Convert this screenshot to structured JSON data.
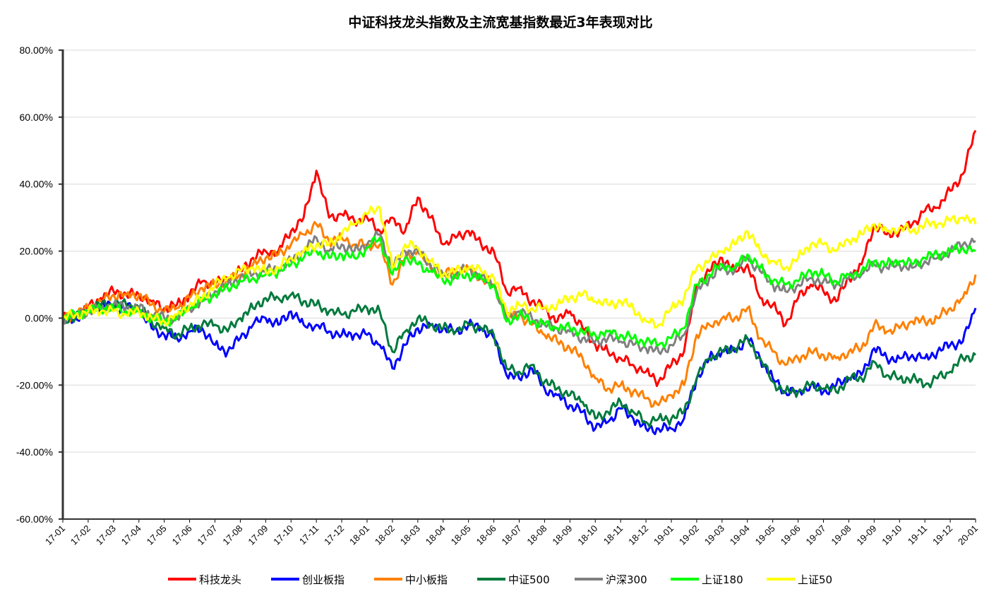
{
  "chart_data": {
    "type": "line",
    "title": "中证科技龙头指数及主流宽基指数最近3年表现对比",
    "xlabel": "",
    "ylabel": "",
    "ylim": [
      -60,
      80
    ],
    "y_ticks": [
      80,
      60,
      40,
      20,
      0,
      -20,
      -40,
      -60
    ],
    "y_tick_labels": [
      "80.00%",
      "60.00%",
      "40.00%",
      "20.00%",
      "0.00%",
      "-20.00%",
      "-40.00%",
      "-60.00%"
    ],
    "y_unit": "%",
    "grid": "horizontal",
    "legend_position": "bottom",
    "x_tick_labels": [
      "17-01",
      "17-02",
      "17-03",
      "17-04",
      "17-05",
      "17-06",
      "17-07",
      "17-08",
      "17-09",
      "17-10",
      "17-11",
      "17-12",
      "18-01",
      "18-02",
      "18-03",
      "18-04",
      "18-05",
      "18-06",
      "18-07",
      "18-08",
      "18-09",
      "18-10",
      "18-11",
      "18-12",
      "19-01",
      "19-02",
      "19-03",
      "19-04",
      "19-05",
      "19-06",
      "19-07",
      "19-08",
      "19-09",
      "19-10",
      "19-11",
      "19-12",
      "20-01"
    ],
    "x": [
      "17-01",
      "17-01h",
      "17-02",
      "17-02h",
      "17-03",
      "17-03h",
      "17-04",
      "17-04h",
      "17-05",
      "17-05h",
      "17-06",
      "17-06h",
      "17-07",
      "17-07h",
      "17-08",
      "17-08h",
      "17-09",
      "17-09h",
      "17-10",
      "17-10h",
      "17-11",
      "17-11h",
      "17-12",
      "17-12h",
      "18-01",
      "18-01h",
      "18-02",
      "18-02h",
      "18-03",
      "18-03h",
      "18-04",
      "18-04h",
      "18-05",
      "18-05h",
      "18-06",
      "18-06h",
      "18-07",
      "18-07h",
      "18-08",
      "18-08h",
      "18-09",
      "18-09h",
      "18-10",
      "18-10h",
      "18-11",
      "18-11h",
      "18-12",
      "18-12h",
      "19-01",
      "19-01h",
      "19-02",
      "19-02h",
      "19-03",
      "19-03h",
      "19-04",
      "19-04h",
      "19-05",
      "19-05h",
      "19-06",
      "19-06h",
      "19-07",
      "19-07h",
      "19-08",
      "19-08h",
      "19-09",
      "19-09h",
      "19-10",
      "19-10h",
      "19-11",
      "19-11h",
      "19-12",
      "19-12h",
      "20-01"
    ],
    "series": [
      {
        "name": "科技龙头",
        "color": "#ff0000",
        "values": [
          0,
          1,
          3,
          6,
          8,
          7,
          7,
          5,
          3,
          4,
          7,
          11,
          10,
          12,
          14,
          18,
          20,
          20,
          26,
          30,
          44,
          30,
          31,
          29,
          30,
          26,
          30,
          26,
          36,
          30,
          22,
          24,
          26,
          22,
          20,
          8,
          9,
          5,
          3,
          -1,
          2,
          -3,
          -8,
          -10,
          -12,
          -14,
          -16,
          -19,
          -14,
          -10,
          10,
          14,
          18,
          14,
          16,
          6,
          4,
          -2,
          6,
          10,
          8,
          5,
          12,
          16,
          28,
          25,
          26,
          28,
          32,
          33,
          38,
          43,
          56
        ]
      },
      {
        "name": "创业板指",
        "color": "#0000ff",
        "values": [
          0,
          0,
          2,
          4,
          3,
          3,
          3,
          -3,
          -5,
          -6,
          -4,
          -3,
          -8,
          -10,
          -6,
          -2,
          0,
          -2,
          2,
          -2,
          -2,
          -4,
          -5,
          -5,
          -5,
          -8,
          -15,
          -8,
          -3,
          -2,
          -3,
          -4,
          -2,
          -3,
          -6,
          -17,
          -18,
          -15,
          -21,
          -23,
          -26,
          -28,
          -33,
          -31,
          -27,
          -30,
          -33,
          -33,
          -33,
          -30,
          -18,
          -12,
          -10,
          -10,
          -6,
          -12,
          -18,
          -22,
          -22,
          -20,
          -22,
          -20,
          -18,
          -17,
          -9,
          -12,
          -12,
          -11,
          -12,
          -10,
          -8,
          -7,
          3
        ]
      },
      {
        "name": "中小板指",
        "color": "#ff8000",
        "values": [
          0,
          1,
          3,
          5,
          7,
          7,
          7,
          4,
          2,
          3,
          6,
          9,
          10,
          11,
          13,
          16,
          18,
          19,
          22,
          25,
          28,
          23,
          24,
          22,
          22,
          22,
          10,
          18,
          20,
          15,
          13,
          14,
          15,
          12,
          10,
          0,
          1,
          -2,
          -5,
          -7,
          -9,
          -12,
          -18,
          -21,
          -20,
          -22,
          -24,
          -26,
          -23,
          -20,
          -5,
          -2,
          0,
          0,
          3,
          -6,
          -10,
          -14,
          -12,
          -10,
          -11,
          -12,
          -10,
          -9,
          -2,
          -4,
          -3,
          -1,
          -1,
          0,
          3,
          6,
          13
        ]
      },
      {
        "name": "中证500",
        "color": "#007a3d",
        "values": [
          0,
          0,
          2,
          4,
          4,
          4,
          3,
          -1,
          -3,
          -5,
          -3,
          -2,
          -2,
          -4,
          0,
          3,
          6,
          6,
          7,
          5,
          4,
          2,
          1,
          2,
          3,
          2,
          -10,
          -4,
          0,
          -2,
          -3,
          -4,
          -2,
          -3,
          -5,
          -15,
          -16,
          -14,
          -19,
          -21,
          -23,
          -25,
          -30,
          -28,
          -25,
          -28,
          -31,
          -30,
          -30,
          -28,
          -18,
          -12,
          -10,
          -9,
          -6,
          -12,
          -19,
          -22,
          -22,
          -20,
          -21,
          -22,
          -18,
          -18,
          -13,
          -17,
          -18,
          -18,
          -20,
          -18,
          -16,
          -12,
          -11
        ]
      },
      {
        "name": "沪深300",
        "color": "#808080",
        "values": [
          0,
          1,
          2,
          3,
          4,
          3,
          3,
          1,
          0,
          0,
          3,
          5,
          8,
          10,
          12,
          13,
          14,
          15,
          17,
          20,
          24,
          20,
          22,
          20,
          22,
          25,
          15,
          20,
          20,
          16,
          13,
          13,
          15,
          12,
          10,
          0,
          2,
          0,
          -2,
          -3,
          -4,
          -6,
          -7,
          -6,
          -7,
          -8,
          -9,
          -10,
          -8,
          -5,
          8,
          12,
          15,
          14,
          18,
          14,
          10,
          8,
          10,
          12,
          11,
          10,
          12,
          13,
          16,
          15,
          16,
          15,
          17,
          18,
          20,
          22,
          23
        ]
      },
      {
        "name": "上证180",
        "color": "#00ff00",
        "values": [
          0,
          1,
          2,
          3,
          3,
          2,
          2,
          0,
          -1,
          0,
          3,
          5,
          7,
          9,
          11,
          12,
          13,
          14,
          16,
          18,
          20,
          18,
          19,
          18,
          21,
          24,
          13,
          18,
          16,
          14,
          11,
          12,
          13,
          12,
          10,
          -1,
          1,
          -1,
          -2,
          -3,
          -3,
          -4,
          -5,
          -4,
          -5,
          -6,
          -7,
          -8,
          -6,
          -3,
          10,
          13,
          16,
          15,
          19,
          15,
          11,
          10,
          11,
          14,
          13,
          11,
          13,
          14,
          17,
          16,
          17,
          16,
          18,
          19,
          20,
          21,
          20
        ]
      },
      {
        "name": "上证50",
        "color": "#ffff00",
        "values": [
          0,
          1,
          2,
          2,
          2,
          1,
          2,
          0,
          -1,
          1,
          4,
          6,
          10,
          12,
          14,
          15,
          14,
          15,
          18,
          20,
          22,
          22,
          25,
          28,
          31,
          33,
          15,
          22,
          21,
          17,
          13,
          14,
          15,
          14,
          12,
          2,
          4,
          3,
          3,
          4,
          6,
          7,
          5,
          4,
          5,
          3,
          -1,
          -2,
          3,
          6,
          15,
          17,
          20,
          22,
          26,
          20,
          17,
          15,
          18,
          22,
          22,
          20,
          23,
          25,
          28,
          26,
          27,
          26,
          28,
          28,
          29,
          30,
          28
        ]
      }
    ]
  }
}
